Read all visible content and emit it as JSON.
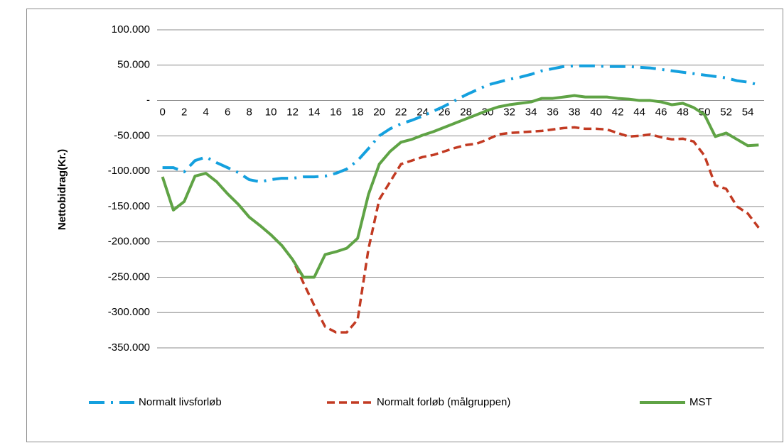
{
  "chart_data": {
    "type": "line",
    "ylabel": "Nettobidrag(Kr.)",
    "categories": [
      0,
      null,
      2,
      null,
      4,
      null,
      6,
      null,
      8,
      null,
      10,
      null,
      12,
      null,
      14,
      null,
      16,
      null,
      18,
      null,
      20,
      null,
      22,
      null,
      24,
      null,
      26,
      null,
      28,
      null,
      30,
      null,
      32,
      null,
      34,
      null,
      36,
      null,
      38,
      null,
      40,
      null,
      42,
      null,
      44,
      null,
      46,
      null,
      48,
      null,
      50,
      null,
      52,
      null,
      54,
      null
    ],
    "series": [
      {
        "name": "Normalt livsforløb",
        "color": "#14a0de",
        "line_style": "dashdot",
        "values": [
          -95000,
          -95000,
          -101000,
          -85000,
          -80000,
          -88000,
          -95000,
          -102000,
          -112000,
          -115000,
          -112000,
          -110000,
          -110000,
          -108000,
          -108000,
          -107000,
          -103000,
          -97000,
          -85000,
          -68000,
          -50000,
          -40000,
          -33000,
          -28000,
          -22000,
          -15000,
          -8000,
          0,
          8000,
          15000,
          22000,
          26000,
          30000,
          33000,
          37000,
          42000,
          45000,
          48000,
          49000,
          49000,
          49000,
          48000,
          48000,
          48000,
          47000,
          46000,
          44000,
          42000,
          40000,
          38000,
          36000,
          34000,
          32000,
          28000,
          26000,
          22000
        ]
      },
      {
        "name": "Normalt forløb (målgruppen)",
        "color": "#c23a22",
        "line_style": "dashed",
        "values": [
          -108000,
          -155000,
          -143000,
          -107000,
          -103000,
          -115000,
          -132000,
          -147000,
          -165000,
          -177000,
          -190000,
          -205000,
          -225000,
          -258000,
          -290000,
          -320000,
          -328000,
          -328000,
          -310000,
          -210000,
          -140000,
          -115000,
          -90000,
          -85000,
          -80000,
          -77000,
          -72000,
          -67000,
          -63000,
          -61000,
          -55000,
          -48000,
          -46000,
          -45000,
          -44000,
          -43000,
          -41000,
          -39000,
          -38000,
          -40000,
          -40000,
          -41000,
          -46000,
          -51000,
          -50000,
          -48000,
          -52000,
          -55000,
          -54000,
          -58000,
          -78000,
          -120000,
          -125000,
          -150000,
          -160000,
          -180000
        ]
      },
      {
        "name": "MST",
        "color": "#5fa345",
        "line_style": "solid",
        "values": [
          -108000,
          -155000,
          -143000,
          -107000,
          -103000,
          -115000,
          -132000,
          -147000,
          -165000,
          -177000,
          -190000,
          -205000,
          -225000,
          -250000,
          -250000,
          -218000,
          -214000,
          -209000,
          -195000,
          -133000,
          -90000,
          -72000,
          -59000,
          -55000,
          -49000,
          -44000,
          -38000,
          -32000,
          -26000,
          -20000,
          -14000,
          -9000,
          -6000,
          -4000,
          -2000,
          3000,
          3000,
          5000,
          7000,
          5000,
          5000,
          5000,
          3000,
          2000,
          0,
          0,
          -2000,
          -6000,
          -4000,
          -10000,
          -20000,
          -51000,
          -46000,
          -55000,
          -64000,
          -63000
        ]
      }
    ],
    "ylim": [
      -350000,
      100000
    ],
    "yticks": [
      {
        "value": 100000,
        "label": "100.000"
      },
      {
        "value": 50000,
        "label": "50.000"
      },
      {
        "value": 0,
        "label": "-"
      },
      {
        "value": -50000,
        "label": "-50.000"
      },
      {
        "value": -100000,
        "label": "-100.000"
      },
      {
        "value": -150000,
        "label": "-150.000"
      },
      {
        "value": -200000,
        "label": "-200.000"
      },
      {
        "value": -250000,
        "label": "-250.000"
      },
      {
        "value": -300000,
        "label": "-300.000"
      },
      {
        "value": -350000,
        "label": "-350.000"
      }
    ],
    "grid": true,
    "legend": "bottom"
  }
}
